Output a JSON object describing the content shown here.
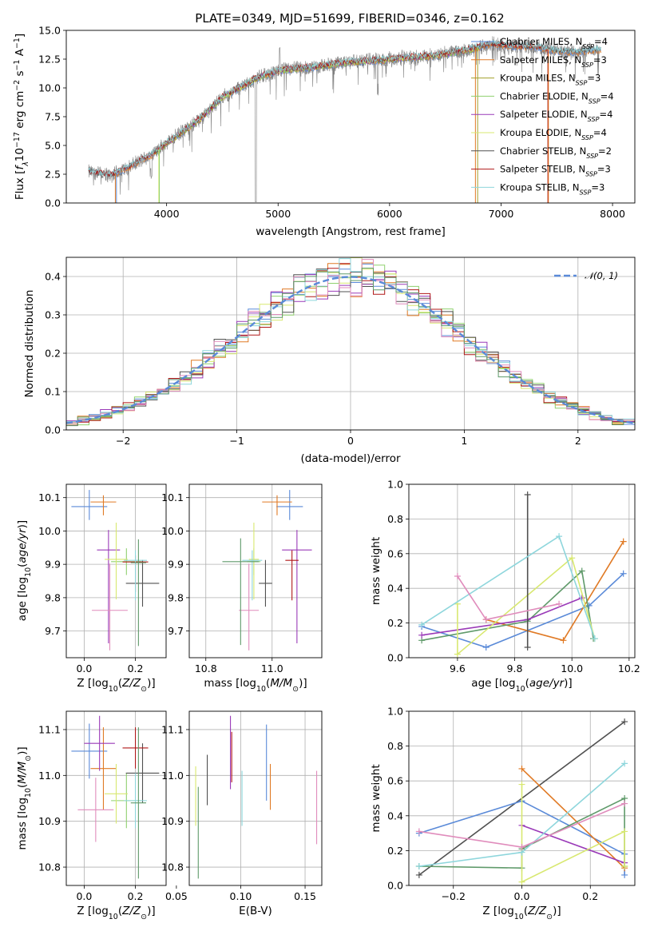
{
  "figure": {
    "title": "PLATE=0349, MJD=51699, FIBERID=0346, z=0.162"
  },
  "series_names": [
    "Chabrier MILES, N_SSP=4",
    "Salpeter MILES, N_SSP=3",
    "Kroupa MILES, N_SSP=3",
    "Chabrier ELODIE, N_SSP=4",
    "Salpeter ELODIE, N_SSP=4",
    "Kroupa ELODIE, N_SSP=4",
    "Chabrier STELIB, N_SSP=2",
    "Salpeter STELIB, N_SSP=3",
    "Kroupa STELIB, N_SSP=3"
  ],
  "legend": [
    {
      "model": "Chabrier MILES",
      "n": "4",
      "color": "#5a8ad8"
    },
    {
      "model": "Salpeter MILES",
      "n": "3",
      "color": "#e07a25"
    },
    {
      "model": "Kroupa MILES",
      "n": "3",
      "color": "#a3a02a"
    },
    {
      "model": "Chabrier ELODIE",
      "n": "4",
      "color": "#8fd06f"
    },
    {
      "model": "Salpeter ELODIE",
      "n": "4",
      "color": "#9a3ab8"
    },
    {
      "model": "Kroupa ELODIE",
      "n": "4",
      "color": "#d8e870"
    },
    {
      "model": "Chabrier STELIB",
      "n": "2",
      "color": "#505050"
    },
    {
      "model": "Salpeter STELIB",
      "n": "3",
      "color": "#b01818"
    },
    {
      "model": "Kroupa STELIB",
      "n": "3",
      "color": "#8ed6dc"
    }
  ],
  "legend_suffix_sub": "SSP",
  "colors": {
    "chabrier_miles": "#5a8ad8",
    "salpeter_miles": "#e07a25",
    "kroupa_miles": "#a3a02a",
    "chabrier_elodie": "#8fd06f",
    "salpeter_elodie": "#9a3ab8",
    "kroupa_elodie": "#d8e870",
    "chabrier_stelib": "#505050",
    "salpeter_stelib": "#b01818",
    "kroupa_stelib": "#8ed6dc",
    "spectrum": "#808080",
    "gaussian": "#5a8ad8",
    "pink": "#e08cbc",
    "teal": "#5f9a6a"
  },
  "chart_data": [
    {
      "id": "spectrum",
      "type": "line",
      "xlabel": "wavelength [Angstrom, rest frame]",
      "ylabel": "Flux [f_λ 10^-17 erg cm^-2 s^-1 A^-1]",
      "xlim": [
        3100,
        8200
      ],
      "ylim": [
        0,
        15
      ],
      "xticks": [
        "4000",
        "5000",
        "6000",
        "7000",
        "8000"
      ],
      "yticks": [
        "0.0",
        "2.5",
        "5.0",
        "7.5",
        "10.0",
        "12.5",
        "15.0"
      ],
      "grid": false,
      "legend_position": "top-right",
      "continuum": {
        "x": [
          3300,
          3500,
          3700,
          3900,
          4000,
          4300,
          4500,
          4800,
          5000,
          5300,
          5600,
          5900,
          6100,
          6400,
          6700,
          6900,
          7100,
          7300,
          7500,
          7700,
          7800
        ],
        "y": [
          2.7,
          2.4,
          3.3,
          4.4,
          5.2,
          7.3,
          9.2,
          10.8,
          11.5,
          11.8,
          12.2,
          12.4,
          12.6,
          12.8,
          13.3,
          13.8,
          13.6,
          13.6,
          13.2,
          13.1,
          13.3
        ]
      }
    },
    {
      "id": "residuals",
      "type": "histogram",
      "xlabel": "(data-model)/error",
      "ylabel": "Normed distribution",
      "xlim": [
        -2.5,
        2.5
      ],
      "ylim": [
        0,
        0.45
      ],
      "xticks": [
        "−2",
        "−1",
        "0",
        "1",
        "2"
      ],
      "yticks": [
        "0.0",
        "0.1",
        "0.2",
        "0.3",
        "0.4"
      ],
      "grid": true,
      "bin_width": 0.1,
      "reference_curve": "𝒩(0, 1)",
      "legend_position": "top-right"
    },
    {
      "id": "age-vs-Z",
      "type": "scatter",
      "xlabel": "Z [log10(Z/Z☉)]",
      "ylabel": "age [log10(age/yr)]",
      "xlim": [
        -0.07,
        0.32
      ],
      "ylim": [
        9.62,
        10.14
      ],
      "xticks": [
        "0.0",
        "0.2"
      ],
      "yticks": [
        "9.7",
        "9.8",
        "9.9",
        "10.0",
        "10.1"
      ],
      "grid": true,
      "points": [
        {
          "x": 0.02,
          "y": 10.073,
          "xerr": 0.07,
          "yerr_lo": 0.04,
          "yerr_hi": 0.05,
          "color": "#5a8ad8"
        },
        {
          "x": 0.075,
          "y": 10.087,
          "xerr": 0.05,
          "yerr_lo": 0.04,
          "yerr_hi": 0.02,
          "color": "#e07a25"
        },
        {
          "x": 0.165,
          "y": 9.908,
          "xerr": 0.06,
          "yerr_lo": 0.04,
          "yerr_hi": 0.04,
          "color": "#8fd06f"
        },
        {
          "x": 0.095,
          "y": 9.943,
          "xerr": 0.045,
          "yerr_lo": 0.28,
          "yerr_hi": 0.06,
          "color": "#9a3ab8"
        },
        {
          "x": 0.125,
          "y": 9.915,
          "xerr": 0.045,
          "yerr_lo": 0.12,
          "yerr_hi": 0.11,
          "color": "#d8e870"
        },
        {
          "x": 0.228,
          "y": 9.843,
          "xerr": 0.065,
          "yerr_lo": 0.07,
          "yerr_hi": 0.07,
          "color": "#505050"
        },
        {
          "x": 0.2,
          "y": 9.907,
          "xerr": 0.05,
          "yerr_lo": 0.09,
          "yerr_hi": 0.02,
          "color": "#b01818"
        },
        {
          "x": 0.2,
          "y": 9.912,
          "xerr": 0.045,
          "yerr_lo": 0.12,
          "yerr_hi": 0.03,
          "color": "#8ed6dc"
        },
        {
          "x": 0.1,
          "y": 9.762,
          "xerr": 0.07,
          "yerr_lo": 0.12,
          "yerr_hi": 0.14,
          "color": "#e08cbc"
        },
        {
          "x": 0.212,
          "y": 9.905,
          "xerr": 0.03,
          "yerr_lo": 0.25,
          "yerr_hi": 0.07,
          "color": "#5f9a6a"
        }
      ]
    },
    {
      "id": "age-vs-mass",
      "type": "scatter",
      "xlabel": "mass [log10(M/M☉)]",
      "ylabel": "",
      "xlim": [
        10.75,
        11.15
      ],
      "ylim": [
        9.62,
        10.14
      ],
      "xticks": [
        "10.8",
        "11.0"
      ],
      "yticks": [
        "9.7",
        "9.8",
        "9.9",
        "10.0",
        "10.1"
      ],
      "grid": true,
      "points": [
        {
          "x": 11.053,
          "y": 10.073,
          "xerr": 0.04,
          "yerr_lo": 0.04,
          "yerr_hi": 0.05,
          "color": "#5a8ad8"
        },
        {
          "x": 11.015,
          "y": 10.087,
          "xerr": 0.045,
          "yerr_lo": 0.04,
          "yerr_hi": 0.02,
          "color": "#e07a25"
        },
        {
          "x": 10.945,
          "y": 9.908,
          "xerr": 0.02,
          "yerr_lo": 0.04,
          "yerr_hi": 0.04,
          "color": "#8fd06f"
        },
        {
          "x": 11.075,
          "y": 9.943,
          "xerr": 0.045,
          "yerr_lo": 0.28,
          "yerr_hi": 0.06,
          "color": "#9a3ab8"
        },
        {
          "x": 10.945,
          "y": 9.915,
          "xerr": 0.015,
          "yerr_lo": 0.12,
          "yerr_hi": 0.11,
          "color": "#d8e870"
        },
        {
          "x": 10.98,
          "y": 9.843,
          "xerr": 0.02,
          "yerr_lo": 0.07,
          "yerr_hi": 0.07,
          "color": "#505050"
        },
        {
          "x": 11.06,
          "y": 9.912,
          "xerr": 0.02,
          "yerr_lo": 0.12,
          "yerr_hi": 0.03,
          "color": "#b01818"
        },
        {
          "x": 10.94,
          "y": 9.912,
          "xerr": 0.03,
          "yerr_lo": 0.12,
          "yerr_hi": 0.03,
          "color": "#8ed6dc"
        },
        {
          "x": 10.93,
          "y": 9.762,
          "xerr": 0.03,
          "yerr_lo": 0.12,
          "yerr_hi": 0.14,
          "color": "#e08cbc"
        },
        {
          "x": 10.905,
          "y": 9.908,
          "xerr": 0.055,
          "yerr_lo": 0.25,
          "yerr_hi": 0.07,
          "color": "#5f9a6a"
        }
      ]
    },
    {
      "id": "weight-vs-age",
      "type": "line",
      "xlabel": "age [log10(age/yr)]",
      "ylabel": "mass weight",
      "xlim": [
        9.43,
        10.22
      ],
      "ylim": [
        0,
        1
      ],
      "xticks": [
        "9.6",
        "9.8",
        "10.0",
        "10.2"
      ],
      "yticks": [
        "0.0",
        "0.2",
        "0.4",
        "0.6",
        "0.8",
        "1.0"
      ],
      "grid": true,
      "series": [
        {
          "color": "#5a8ad8",
          "x": [
            9.475,
            9.7,
            10.06,
            10.18
          ],
          "y": [
            0.18,
            0.06,
            0.3,
            0.485
          ]
        },
        {
          "color": "#e07a25",
          "x": [
            9.7,
            9.97,
            10.18
          ],
          "y": [
            0.22,
            0.1,
            0.67
          ]
        },
        {
          "color": "#5f9a6a",
          "x": [
            9.475,
            9.845,
            10.035,
            10.075
          ],
          "y": [
            0.1,
            0.21,
            0.5,
            0.11
          ]
        },
        {
          "color": "#9a3ab8",
          "x": [
            9.475,
            9.845,
            10.035
          ],
          "y": [
            0.13,
            0.22,
            0.345
          ]
        },
        {
          "color": "#d8e870",
          "x": [
            9.6,
            9.6,
            10.0,
            10.08
          ],
          "y": [
            0.31,
            0.02,
            0.575,
            0.11
          ]
        },
        {
          "color": "#505050",
          "x": [
            9.845,
            9.845
          ],
          "y": [
            0.06,
            0.94
          ]
        },
        {
          "color": "#8ed6dc",
          "x": [
            9.475,
            9.955,
            10.08
          ],
          "y": [
            0.19,
            0.7,
            0.11
          ]
        },
        {
          "color": "#e08cbc",
          "x": [
            9.6,
            9.7,
            9.955
          ],
          "y": [
            0.47,
            0.22,
            0.31
          ]
        }
      ]
    },
    {
      "id": "mass-vs-Z",
      "type": "scatter",
      "xlabel": "Z [log10(Z/Z☉)]",
      "ylabel": "mass [log10(M/M☉)]",
      "xlim": [
        -0.07,
        0.32
      ],
      "ylim": [
        10.76,
        11.14
      ],
      "xticks": [
        "0.0",
        "0.2"
      ],
      "yticks": [
        "10.8",
        "10.9",
        "11.0",
        "11.1"
      ],
      "grid": true,
      "points": [
        {
          "x": 0.02,
          "y": 11.053,
          "xerr": 0.07,
          "yerr": 0.06,
          "color": "#5a8ad8"
        },
        {
          "x": 0.075,
          "y": 11.015,
          "xerr": 0.05,
          "yerr": 0.09,
          "color": "#e07a25"
        },
        {
          "x": 0.165,
          "y": 10.945,
          "xerr": 0.06,
          "yerr": 0.06,
          "color": "#8fd06f"
        },
        {
          "x": 0.06,
          "y": 11.07,
          "xerr": 0.06,
          "yerr": 0.06,
          "color": "#9a3ab8"
        },
        {
          "x": 0.125,
          "y": 10.96,
          "xerr": 0.045,
          "yerr": 0.065,
          "color": "#d8e870"
        },
        {
          "x": 0.228,
          "y": 11.005,
          "xerr": 0.065,
          "yerr": 0.065,
          "color": "#505050"
        },
        {
          "x": 0.2,
          "y": 11.06,
          "xerr": 0.05,
          "yerr": 0.045,
          "color": "#b01818"
        },
        {
          "x": 0.2,
          "y": 10.945,
          "xerr": 0.045,
          "yerr": 0.06,
          "color": "#8ed6dc"
        },
        {
          "x": 0.045,
          "y": 10.925,
          "xerr": 0.07,
          "yerr": 0.07,
          "color": "#e08cbc"
        },
        {
          "x": 0.212,
          "y": 10.94,
          "xerr": 0.03,
          "yerr": 0.165,
          "color": "#5f9a6a"
        }
      ]
    },
    {
      "id": "mass-vs-ebv",
      "type": "scatter",
      "xlabel": "E(B-V)",
      "ylabel": "",
      "xlim": [
        0.06,
        0.163
      ],
      "ylim": [
        10.76,
        11.14
      ],
      "xticks": [
        "0.05",
        "0.10",
        "0.15"
      ],
      "yticks": [
        "10.8",
        "10.9",
        "11.0",
        "11.1"
      ],
      "grid": true,
      "points": [
        {
          "x": 0.12,
          "y": 11.028,
          "yerr": 0.083,
          "color": "#5a8ad8"
        },
        {
          "x": 0.123,
          "y": 10.975,
          "yerr": 0.05,
          "color": "#e07a25"
        },
        {
          "x": 0.065,
          "y": 10.955,
          "yerr": 0.065,
          "color": "#d8e870"
        },
        {
          "x": 0.067,
          "y": 10.875,
          "yerr": 0.1,
          "color": "#5f9a6a"
        },
        {
          "x": 0.074,
          "y": 10.99,
          "yerr": 0.055,
          "color": "#505050"
        },
        {
          "x": 0.092,
          "y": 11.05,
          "yerr": 0.08,
          "color": "#9a3ab8"
        },
        {
          "x": 0.093,
          "y": 11.04,
          "yerr": 0.055,
          "color": "#b01818"
        },
        {
          "x": 0.101,
          "y": 10.95,
          "yerr": 0.06,
          "color": "#8ed6dc"
        },
        {
          "x": 0.159,
          "y": 10.93,
          "yerr": 0.08,
          "color": "#e08cbc"
        }
      ]
    },
    {
      "id": "weight-vs-Z",
      "type": "line",
      "xlabel": "Z [log10(Z/Z☉)]",
      "ylabel": "mass weight",
      "xlim": [
        -0.33,
        0.33
      ],
      "ylim": [
        0,
        1
      ],
      "xticks": [
        "−0.2",
        "0.0",
        "0.2"
      ],
      "yticks": [
        "0.0",
        "0.2",
        "0.4",
        "0.6",
        "0.8",
        "1.0"
      ],
      "grid": true,
      "series": [
        {
          "color": "#505050",
          "x": [
            -0.3,
            0.3
          ],
          "y": [
            0.06,
            0.94
          ]
        },
        {
          "color": "#5a8ad8",
          "x": [
            -0.3,
            0.0,
            0.3,
            0.3
          ],
          "y": [
            0.3,
            0.485,
            0.18,
            0.06
          ]
        },
        {
          "color": "#e07a25",
          "x": [
            0.0,
            0.3
          ],
          "y": [
            0.67,
            0.1
          ]
        },
        {
          "color": "#5f9a6a",
          "x": [
            -0.3,
            0.0,
            0.0,
            0.3,
            0.3
          ],
          "y": [
            0.11,
            0.1,
            0.21,
            0.5,
            0.11
          ]
        },
        {
          "color": "#9a3ab8",
          "x": [
            0.0,
            0.3
          ],
          "y": [
            0.345,
            0.13
          ]
        },
        {
          "color": "#d8e870",
          "x": [
            0.0,
            0.0,
            0.3,
            0.3
          ],
          "y": [
            0.58,
            0.02,
            0.31,
            0.11
          ]
        },
        {
          "color": "#8ed6dc",
          "x": [
            -0.3,
            0.0,
            0.3
          ],
          "y": [
            0.11,
            0.19,
            0.7
          ]
        },
        {
          "color": "#e08cbc",
          "x": [
            -0.3,
            0.0,
            0.3
          ],
          "y": [
            0.31,
            0.22,
            0.47
          ]
        }
      ]
    }
  ]
}
